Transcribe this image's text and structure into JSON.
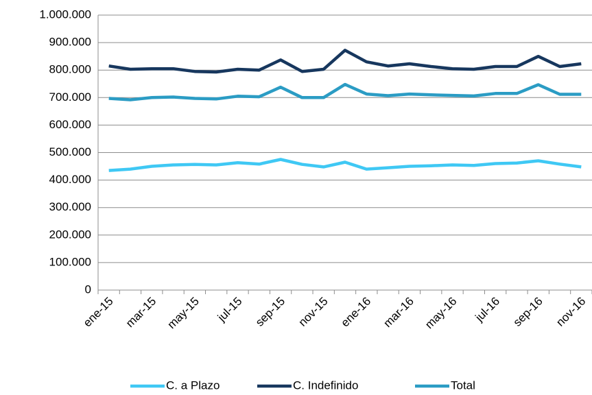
{
  "chart_data": {
    "type": "line",
    "categories": [
      "ene-15",
      null,
      "mar-15",
      null,
      "may-15",
      null,
      "jul-15",
      null,
      "sep-15",
      null,
      "nov-15",
      null,
      "ene-16",
      null,
      "mar-16",
      null,
      "may-16",
      null,
      "jul-16",
      null,
      "sep-16",
      null,
      "nov-16"
    ],
    "series": [
      {
        "name": "C. a Plazo",
        "color": "#3fc8f4",
        "values": [
          435000,
          440000,
          450000,
          455000,
          457000,
          455000,
          463000,
          458000,
          475000,
          457000,
          448000,
          465000,
          440000,
          445000,
          450000,
          452000,
          455000,
          453000,
          460000,
          462000,
          470000,
          458000,
          448000
        ]
      },
      {
        "name": "C. Indefinido",
        "color": "#17375e",
        "values": [
          815000,
          803000,
          805000,
          805000,
          795000,
          793000,
          803000,
          800000,
          837000,
          795000,
          803000,
          872000,
          830000,
          815000,
          823000,
          813000,
          805000,
          803000,
          813000,
          813000,
          850000,
          813000,
          823000
        ]
      },
      {
        "name": "Total",
        "color": "#2b9cc4",
        "values": [
          697000,
          692000,
          700000,
          702000,
          697000,
          695000,
          705000,
          703000,
          738000,
          700000,
          700000,
          748000,
          713000,
          707000,
          713000,
          710000,
          708000,
          706000,
          715000,
          715000,
          747000,
          712000,
          712000
        ]
      }
    ],
    "ylim": [
      0,
      1000000
    ],
    "yticks": [
      0,
      {
        "value": 100000,
        "label": "100.000"
      },
      {
        "value": 200000,
        "label": "200.000"
      },
      {
        "value": 300000,
        "label": "300.000"
      },
      {
        "value": 400000,
        "label": "400.000"
      },
      {
        "value": 500000,
        "label": "500.000"
      },
      {
        "value": 600000,
        "label": "600.000"
      },
      {
        "value": 700000,
        "label": "700.000"
      },
      {
        "value": 800000,
        "label": "800.000"
      },
      {
        "value": 900000,
        "label": "900.000"
      },
      {
        "value": 1000000,
        "label": "1.000.000"
      }
    ],
    "grid": true,
    "legend": "bottom"
  }
}
